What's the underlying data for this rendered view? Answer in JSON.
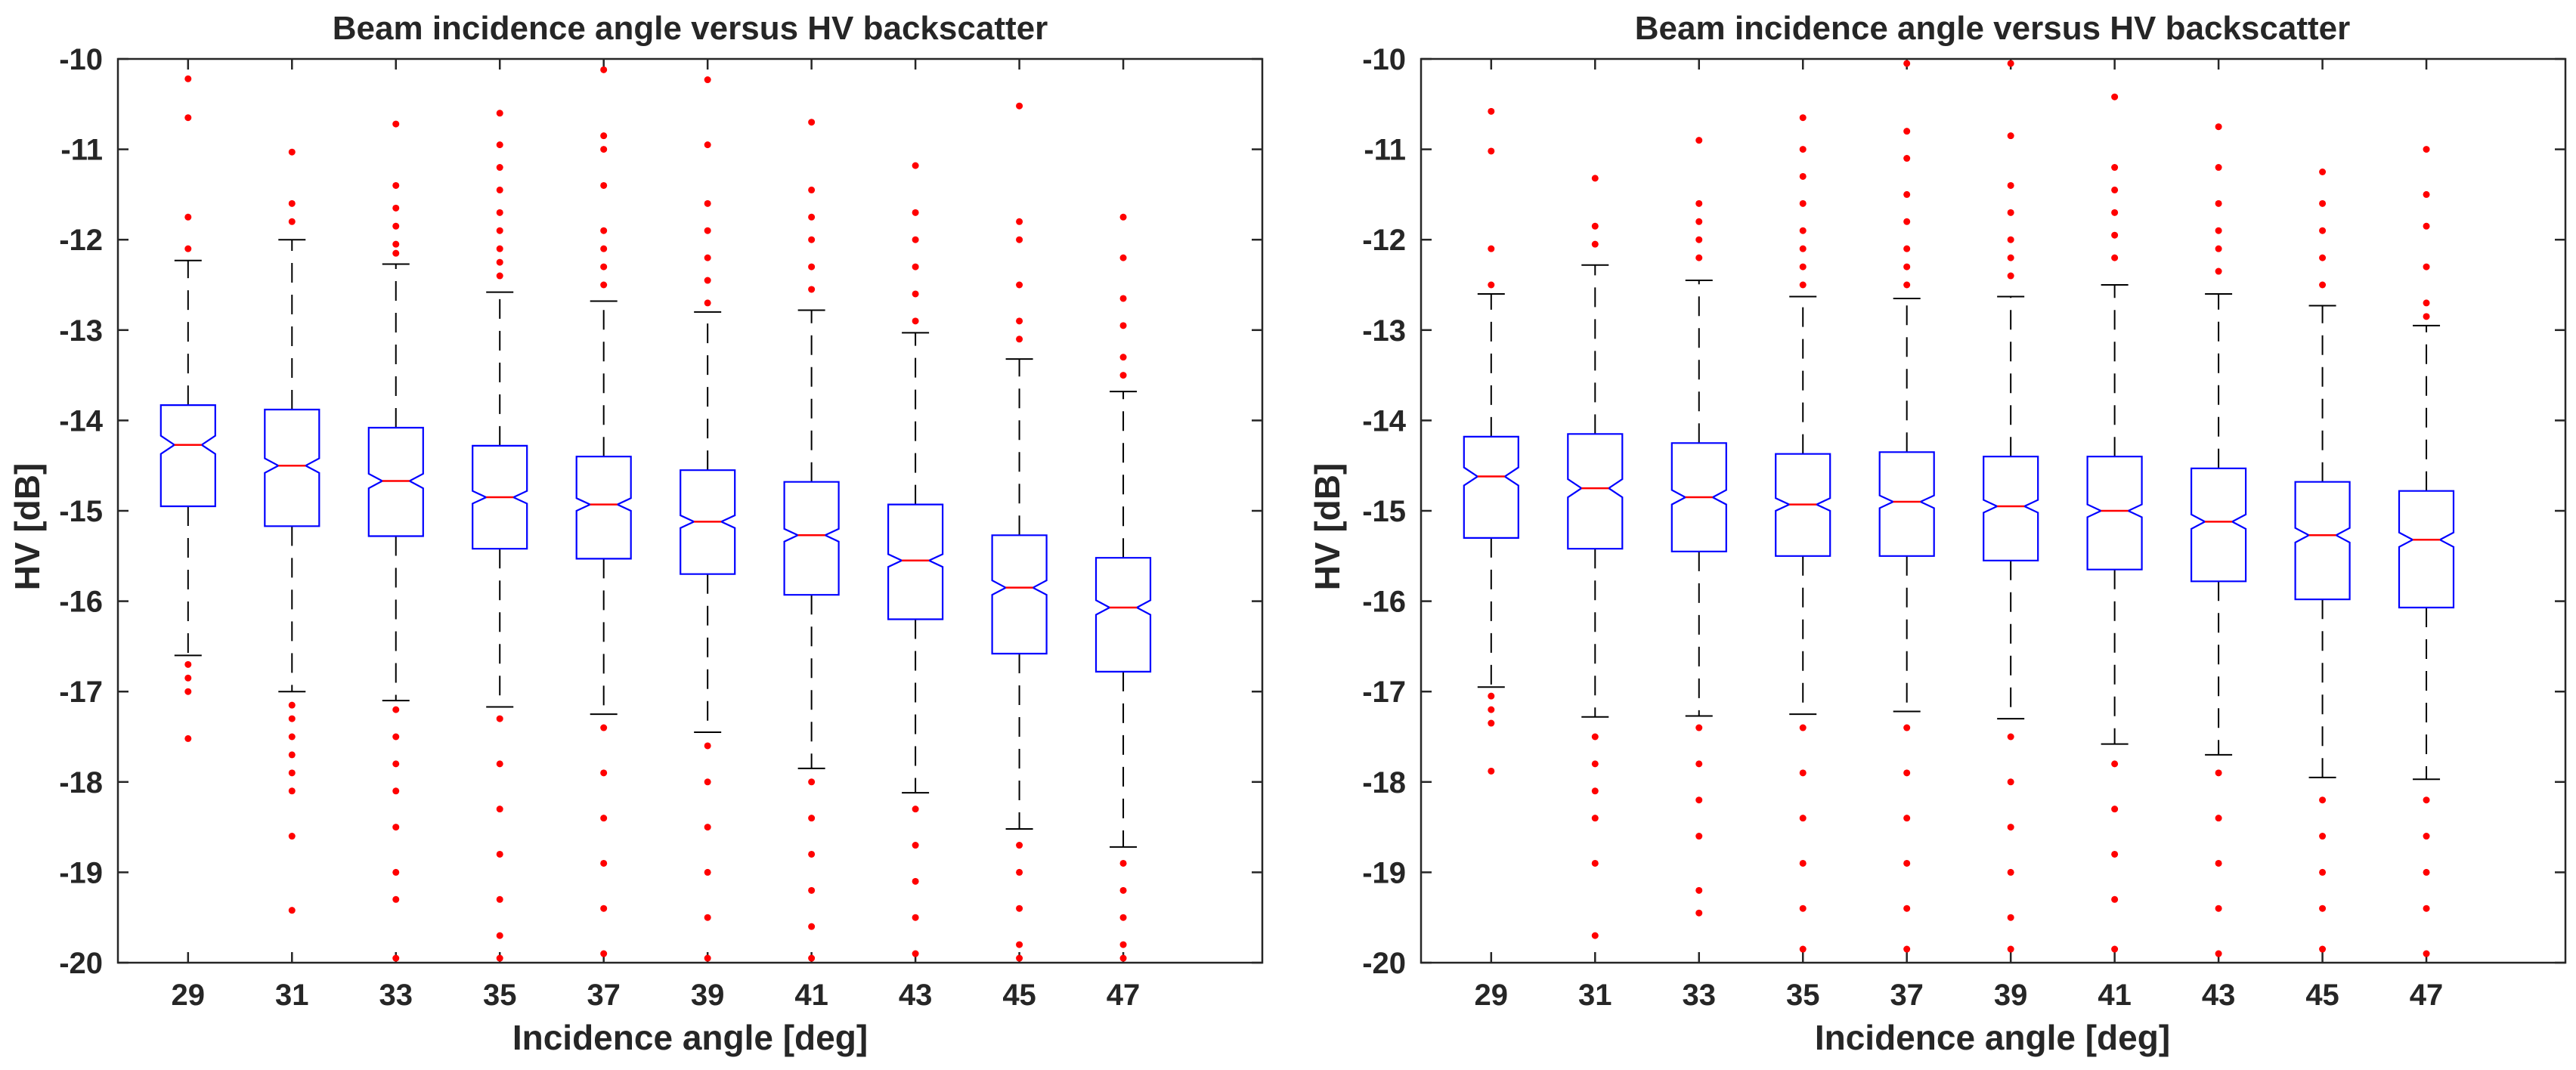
{
  "chart_data": [
    {
      "type": "box",
      "title": "Beam incidence angle versus HV backscatter",
      "xlabel": "Incidence angle [deg]",
      "ylabel": "HV [dB]",
      "ylim": [
        -20,
        -10
      ],
      "yticks": [
        -10,
        -11,
        -12,
        -13,
        -14,
        -15,
        -16,
        -17,
        -18,
        -19,
        -20
      ],
      "categories": [
        "29",
        "31",
        "33",
        "35",
        "37",
        "39",
        "41",
        "43",
        "45",
        "47"
      ],
      "boxes": [
        {
          "median": -14.27,
          "q1": -14.95,
          "q3": -13.83,
          "notch": [
            -14.37,
            -14.17
          ],
          "whisker_low": -16.6,
          "whisker_high": -12.23,
          "outliers": [
            -10.22,
            -10.65,
            -11.75,
            -12.1,
            -16.7,
            -16.85,
            -17.0,
            -17.52
          ]
        },
        {
          "median": -14.5,
          "q1": -15.17,
          "q3": -13.88,
          "notch": [
            -14.58,
            -14.42
          ],
          "whisker_low": -17.0,
          "whisker_high": -12.0,
          "outliers": [
            -11.03,
            -11.6,
            -11.8,
            -17.15,
            -17.3,
            -17.5,
            -17.7,
            -17.9,
            -18.1,
            -18.6,
            -19.42
          ]
        },
        {
          "median": -14.67,
          "q1": -15.28,
          "q3": -14.08,
          "notch": [
            -14.75,
            -14.59
          ],
          "whisker_low": -17.1,
          "whisker_high": -12.27,
          "outliers": [
            -10.72,
            -11.4,
            -11.65,
            -11.85,
            -12.05,
            -12.15,
            -17.2,
            -17.5,
            -17.8,
            -18.1,
            -18.5,
            -19.0,
            -19.3,
            -19.95
          ]
        },
        {
          "median": -14.85,
          "q1": -15.42,
          "q3": -14.28,
          "notch": [
            -14.92,
            -14.78
          ],
          "whisker_low": -17.17,
          "whisker_high": -12.58,
          "outliers": [
            -10.6,
            -10.95,
            -11.2,
            -11.45,
            -11.7,
            -11.9,
            -12.1,
            -12.25,
            -12.4,
            -17.3,
            -17.8,
            -18.3,
            -18.8,
            -19.3,
            -19.7,
            -19.95
          ]
        },
        {
          "median": -14.93,
          "q1": -15.53,
          "q3": -14.4,
          "notch": [
            -15.0,
            -14.86
          ],
          "whisker_low": -17.25,
          "whisker_high": -12.68,
          "outliers": [
            -10.12,
            -10.85,
            -11.0,
            -11.4,
            -11.9,
            -12.1,
            -12.3,
            -12.5,
            -17.4,
            -17.9,
            -18.4,
            -18.9,
            -19.4,
            -19.9
          ]
        },
        {
          "median": -15.12,
          "q1": -15.7,
          "q3": -14.55,
          "notch": [
            -15.19,
            -15.05
          ],
          "whisker_low": -17.45,
          "whisker_high": -12.8,
          "outliers": [
            -10.23,
            -10.95,
            -11.6,
            -11.9,
            -12.2,
            -12.45,
            -12.7,
            -17.6,
            -18.0,
            -18.5,
            -19.0,
            -19.5,
            -19.95
          ]
        },
        {
          "median": -15.27,
          "q1": -15.93,
          "q3": -14.68,
          "notch": [
            -15.34,
            -15.2
          ],
          "whisker_low": -17.85,
          "whisker_high": -12.78,
          "outliers": [
            -10.7,
            -11.45,
            -11.75,
            -12.0,
            -12.3,
            -12.55,
            -18.0,
            -18.4,
            -18.8,
            -19.2,
            -19.6,
            -19.95
          ]
        },
        {
          "median": -15.55,
          "q1": -16.2,
          "q3": -14.93,
          "notch": [
            -15.62,
            -15.48
          ],
          "whisker_low": -18.12,
          "whisker_high": -13.03,
          "outliers": [
            -11.18,
            -11.7,
            -12.0,
            -12.3,
            -12.6,
            -12.9,
            -18.3,
            -18.7,
            -19.1,
            -19.5,
            -19.9
          ]
        },
        {
          "median": -15.85,
          "q1": -16.58,
          "q3": -15.27,
          "notch": [
            -15.93,
            -15.77
          ],
          "whisker_low": -18.52,
          "whisker_high": -13.32,
          "outliers": [
            -10.52,
            -11.8,
            -12.0,
            -12.5,
            -12.9,
            -13.1,
            -18.7,
            -19.0,
            -19.4,
            -19.8,
            -19.95
          ]
        },
        {
          "median": -16.07,
          "q1": -16.78,
          "q3": -15.52,
          "notch": [
            -16.15,
            -15.99
          ],
          "whisker_low": -18.72,
          "whisker_high": -13.68,
          "outliers": [
            -11.75,
            -12.2,
            -12.65,
            -12.95,
            -13.3,
            -13.5,
            -18.9,
            -19.2,
            -19.5,
            -19.8,
            -19.95
          ]
        }
      ]
    },
    {
      "type": "box",
      "title": "Beam incidence angle versus HV backscatter",
      "xlabel": "Incidence angle [deg]",
      "ylabel": "HV [dB]",
      "ylim": [
        -20,
        -10
      ],
      "yticks": [
        -10,
        -11,
        -12,
        -13,
        -14,
        -15,
        -16,
        -17,
        -18,
        -19,
        -20
      ],
      "categories": [
        "29",
        "31",
        "33",
        "35",
        "37",
        "39",
        "41",
        "43",
        "45",
        "47"
      ],
      "boxes": [
        {
          "median": -14.62,
          "q1": -15.3,
          "q3": -14.18,
          "notch": [
            -14.72,
            -14.52
          ],
          "whisker_low": -16.95,
          "whisker_high": -12.6,
          "outliers": [
            -10.58,
            -11.02,
            -12.1,
            -12.5,
            -17.05,
            -17.2,
            -17.35,
            -17.88
          ]
        },
        {
          "median": -14.75,
          "q1": -15.42,
          "q3": -14.15,
          "notch": [
            -14.85,
            -14.65
          ],
          "whisker_low": -17.28,
          "whisker_high": -12.28,
          "outliers": [
            -11.32,
            -11.85,
            -12.05,
            -17.5,
            -17.8,
            -18.1,
            -18.4,
            -18.9,
            -19.7
          ]
        },
        {
          "median": -14.85,
          "q1": -15.45,
          "q3": -14.25,
          "notch": [
            -14.93,
            -14.77
          ],
          "whisker_low": -17.27,
          "whisker_high": -12.45,
          "outliers": [
            -10.9,
            -11.6,
            -11.8,
            -12.0,
            -12.2,
            -17.4,
            -17.8,
            -18.2,
            -18.6,
            -19.2,
            -19.45
          ]
        },
        {
          "median": -14.93,
          "q1": -15.5,
          "q3": -14.37,
          "notch": [
            -15.0,
            -14.86
          ],
          "whisker_low": -17.25,
          "whisker_high": -12.63,
          "outliers": [
            -10.65,
            -11.0,
            -11.3,
            -11.6,
            -11.9,
            -12.1,
            -12.3,
            -12.5,
            -17.4,
            -17.9,
            -18.4,
            -18.9,
            -19.4,
            -19.85
          ]
        },
        {
          "median": -14.9,
          "q1": -15.5,
          "q3": -14.35,
          "notch": [
            -14.97,
            -14.83
          ],
          "whisker_low": -17.22,
          "whisker_high": -12.65,
          "outliers": [
            -10.05,
            -10.8,
            -11.1,
            -11.5,
            -11.8,
            -12.1,
            -12.3,
            -12.5,
            -17.4,
            -17.9,
            -18.4,
            -18.9,
            -19.4,
            -19.85
          ]
        },
        {
          "median": -14.95,
          "q1": -15.55,
          "q3": -14.4,
          "notch": [
            -15.02,
            -14.88
          ],
          "whisker_low": -17.3,
          "whisker_high": -12.63,
          "outliers": [
            -10.05,
            -10.85,
            -11.4,
            -11.7,
            -12.0,
            -12.2,
            -12.4,
            -17.5,
            -18.0,
            -18.5,
            -19.0,
            -19.5,
            -19.85
          ]
        },
        {
          "median": -15.0,
          "q1": -15.65,
          "q3": -14.4,
          "notch": [
            -15.07,
            -14.93
          ],
          "whisker_low": -17.58,
          "whisker_high": -12.5,
          "outliers": [
            -10.42,
            -11.2,
            -11.45,
            -11.7,
            -11.95,
            -12.2,
            -17.8,
            -18.3,
            -18.8,
            -19.3,
            -19.85
          ]
        },
        {
          "median": -15.12,
          "q1": -15.78,
          "q3": -14.53,
          "notch": [
            -15.2,
            -15.04
          ],
          "whisker_low": -17.7,
          "whisker_high": -12.6,
          "outliers": [
            -10.75,
            -11.2,
            -11.6,
            -11.9,
            -12.1,
            -12.35,
            -17.9,
            -18.4,
            -18.9,
            -19.4,
            -19.9
          ]
        },
        {
          "median": -15.27,
          "q1": -15.98,
          "q3": -14.68,
          "notch": [
            -15.35,
            -15.19
          ],
          "whisker_low": -17.95,
          "whisker_high": -12.73,
          "outliers": [
            -11.25,
            -11.6,
            -11.9,
            -12.2,
            -12.5,
            -18.2,
            -18.6,
            -19.0,
            -19.4,
            -19.85
          ]
        },
        {
          "median": -15.32,
          "q1": -16.07,
          "q3": -14.78,
          "notch": [
            -15.4,
            -15.24
          ],
          "whisker_low": -17.97,
          "whisker_high": -12.95,
          "outliers": [
            -11.0,
            -11.5,
            -11.85,
            -12.3,
            -12.7,
            -12.85,
            -18.2,
            -18.6,
            -19.0,
            -19.4,
            -19.9
          ]
        }
      ]
    }
  ]
}
